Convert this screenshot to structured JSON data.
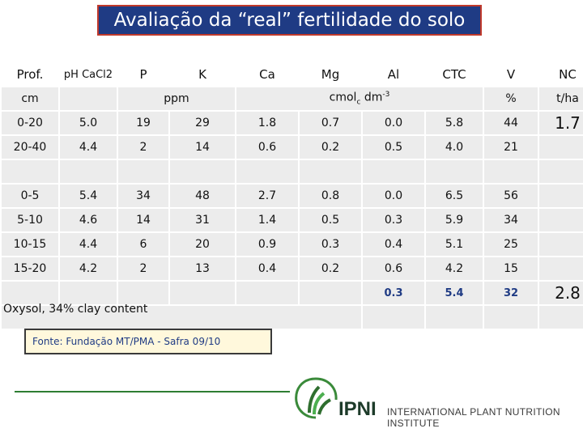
{
  "title": "Avaliação da “real” fertilidade do solo",
  "headers": [
    "Prof.",
    "pH CaCl2",
    "P",
    "K",
    "Ca",
    "Mg",
    "Al",
    "CTC",
    "V",
    "NC"
  ],
  "units": {
    "depth": "cm",
    "ppm": "ppm",
    "cmol": "cmol",
    "cmol_sub": "c",
    "cmol_tail": " dm",
    "cmol_sup": "-3",
    "percent": "%",
    "nc": "t/ha"
  },
  "rows": [
    [
      "0-20",
      "5.0",
      "19",
      "29",
      "1.8",
      "0.7",
      "0.0",
      "5.8",
      "44"
    ],
    [
      "20-40",
      "4.4",
      "2",
      "14",
      "0.6",
      "0.2",
      "0.5",
      "4.0",
      "21"
    ],
    [
      "0-5",
      "5.4",
      "34",
      "48",
      "2.7",
      "0.8",
      "0.0",
      "6.5",
      "56"
    ],
    [
      "5-10",
      "4.6",
      "14",
      "31",
      "1.4",
      "0.5",
      "0.3",
      "5.9",
      "34"
    ],
    [
      "10-15",
      "4.4",
      "6",
      "20",
      "0.9",
      "0.3",
      "0.4",
      "5.1",
      "25"
    ],
    [
      "15-20",
      "4.2",
      "2",
      "13",
      "0.4",
      "0.2",
      "0.6",
      "4.2",
      "15"
    ]
  ],
  "summary": {
    "al": "0.3",
    "ctc": "5.4",
    "v": "32"
  },
  "nc_values": {
    "top": "1.7",
    "bottom": "2.8"
  },
  "note": "Oxysol, 34% clay content",
  "source": "Fonte: Fundação MT/PMA - Safra 09/10",
  "logo": {
    "name": "IPNI",
    "subtitle": "INTERNATIONAL PLANT NUTRITION INSTITUTE"
  },
  "colors": {
    "title_bg": "#1f3b84",
    "title_border": "#c0392b",
    "summary_text": "#1f3b84",
    "cell_bg": "#ececec"
  }
}
